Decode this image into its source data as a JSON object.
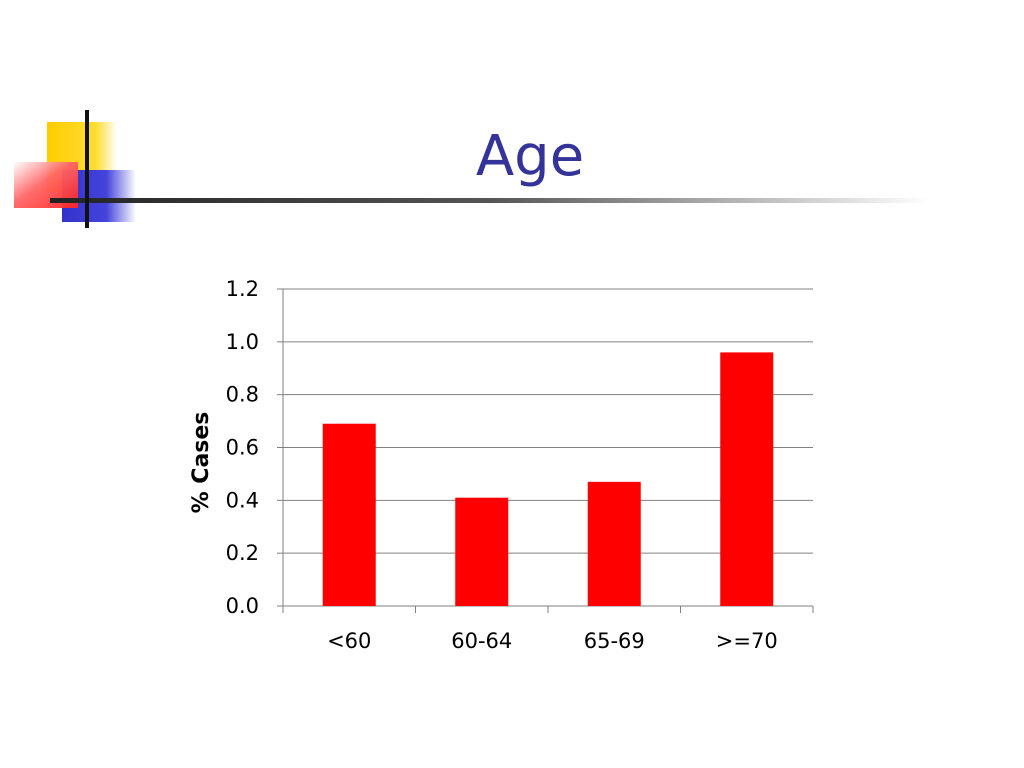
{
  "slide": {
    "title": "Age"
  },
  "colors": {
    "title": "#333399",
    "bar": "#ff0000",
    "gridline": "#808080",
    "deco_yellow": "#ffcc00",
    "deco_blue": "#3333cc",
    "deco_red": "#ff3333"
  },
  "chart_data": {
    "type": "bar",
    "title": "",
    "xlabel": "",
    "ylabel": "% Cases",
    "categories": [
      "<60",
      "60-64",
      "65-69",
      ">=70"
    ],
    "values": [
      0.69,
      0.41,
      0.47,
      0.96
    ],
    "ylim": [
      0,
      1.2
    ],
    "yticks": [
      "0.0",
      "0.2",
      "0.4",
      "0.6",
      "0.8",
      "1.0",
      "1.2"
    ],
    "grid": true,
    "legend": "none"
  }
}
